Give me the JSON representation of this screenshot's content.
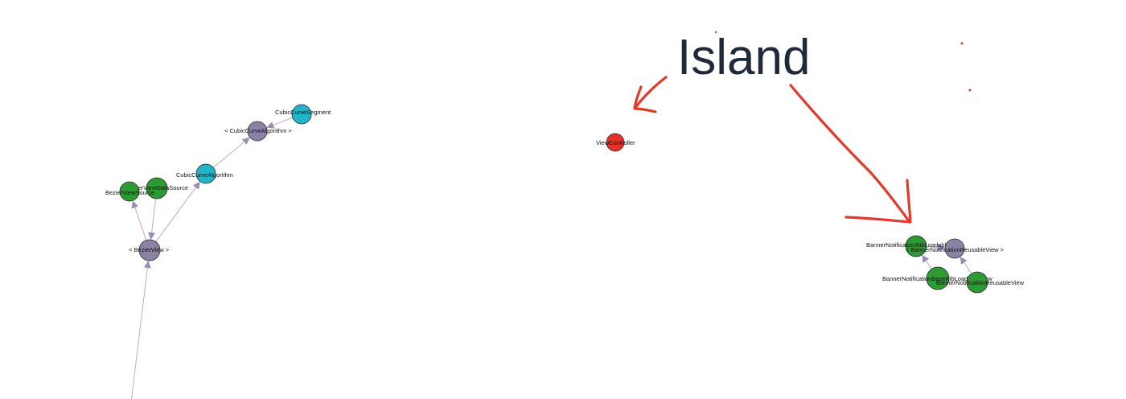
{
  "annotation": {
    "title": "Island",
    "ink_color": "#e03b2a",
    "title_color": "#1e2a3a"
  },
  "colors": {
    "protocol": "#8b82a6",
    "class_green": "#2e9a34",
    "class_teal": "#22b5c8",
    "isolated": "#e2332b",
    "edge": "#c8a6be",
    "arrowhead": "#9a8cb8"
  },
  "nodes": [
    {
      "id": "cubic-curve-segment",
      "label": "CubicCurveSegment",
      "kind": "class_teal"
    },
    {
      "id": "cubic-curve-algorithm-protocol",
      "label": "< CubicCurveAlgorithm >",
      "kind": "protocol"
    },
    {
      "id": "cubic-curve-algorithm",
      "label": "CubicCurveAlgorithm",
      "kind": "class_teal"
    },
    {
      "id": "bezier-view-data-source",
      "label": "BezierViewDataSource",
      "kind": "class_green"
    },
    {
      "id": "bezier-view-source",
      "label": "BezierViewSource",
      "kind": "class_green"
    },
    {
      "id": "bezier-view-protocol",
      "label": "< BezierView >",
      "kind": "protocol"
    },
    {
      "id": "view-controller",
      "label": "ViewController",
      "kind": "isolated"
    },
    {
      "id": "banner-nib-loadable-view",
      "label": "BannerNotificationNibLoadableView",
      "kind": "class_green"
    },
    {
      "id": "banner-reusable-view-protocol",
      "label": "< BannerNotificationReusableView >",
      "kind": "protocol"
    },
    {
      "id": "banner-base-nib-loadable-view",
      "label": "BannerNotificationBaseNibLoadableView",
      "kind": "class_green"
    },
    {
      "id": "banner-reusable-view",
      "label": "BannerNotificationReusableView",
      "kind": "class_green"
    }
  ],
  "edges": [
    {
      "from": "cubic-curve-segment",
      "to": "cubic-curve-algorithm-protocol"
    },
    {
      "from": "cubic-curve-algorithm",
      "to": "cubic-curve-algorithm-protocol"
    },
    {
      "from": "bezier-view-protocol",
      "to": "cubic-curve-algorithm"
    },
    {
      "from": "bezier-view-protocol",
      "to": "bezier-view-source"
    },
    {
      "from": "bezier-view-data-source",
      "to": "bezier-view-protocol"
    },
    {
      "from": "offscreen-bottom",
      "to": "bezier-view-protocol"
    },
    {
      "from": "banner-nib-loadable-view",
      "to": "banner-reusable-view-protocol"
    },
    {
      "from": "banner-base-nib-loadable-view",
      "to": "banner-nib-loadable-view"
    },
    {
      "from": "banner-reusable-view",
      "to": "banner-reusable-view-protocol"
    }
  ]
}
